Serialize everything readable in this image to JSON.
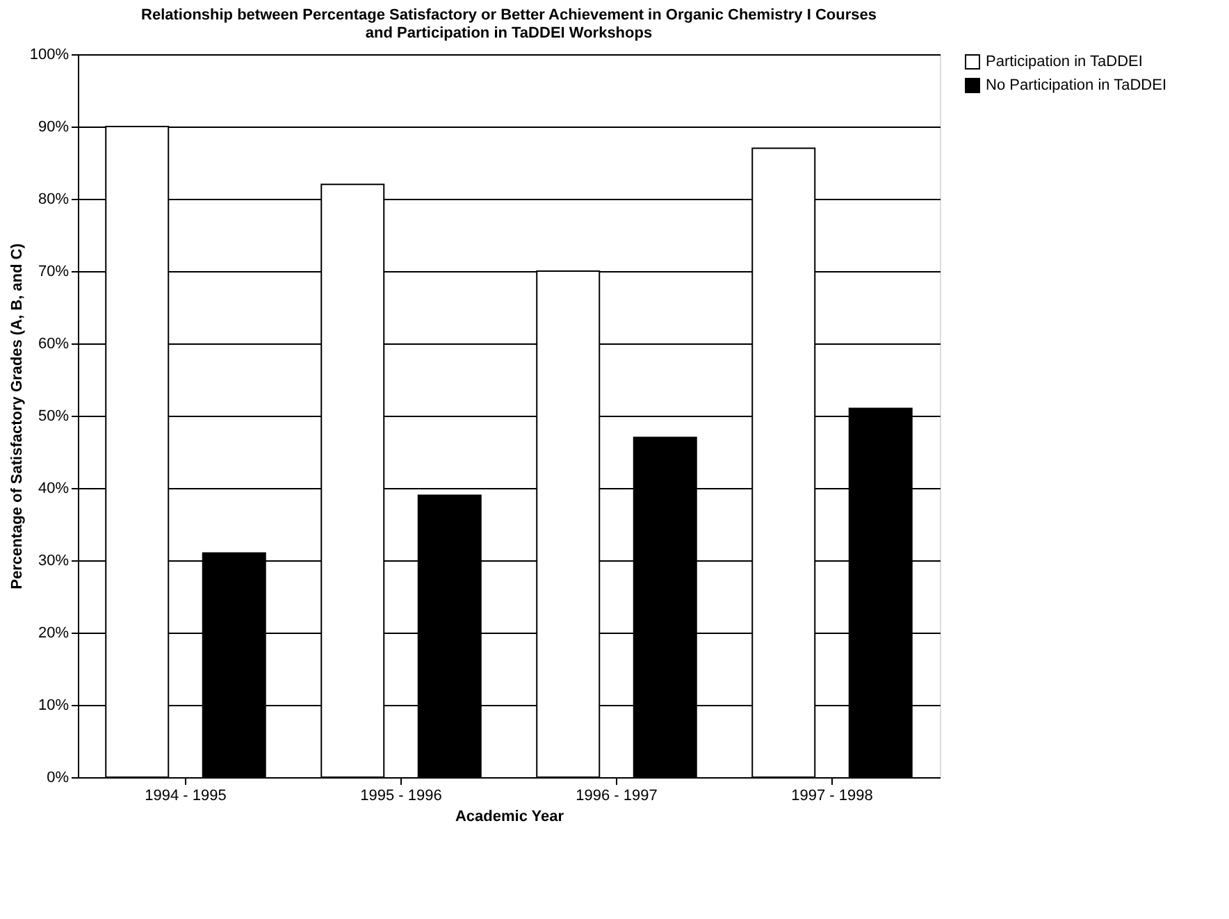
{
  "chart_data": {
    "type": "bar",
    "title": [
      "Relationship between Percentage Satisfactory or Better Achievement in Organic Chemistry I Courses",
      "and Participation in TaDDEI Workshops"
    ],
    "xlabel": "Academic Year",
    "ylabel": "Percentage of Satisfactory Grades (A, B, and C)",
    "categories": [
      "1994 - 1995",
      "1995 - 1996",
      "1996 - 1997",
      "1997 - 1998"
    ],
    "series": [
      {
        "name": "Participation in TaDDEI",
        "color": "#ffffff",
        "values": [
          90,
          82,
          70,
          87
        ]
      },
      {
        "name": "No Participation in TaDDEI",
        "color": "#000000",
        "values": [
          31,
          39,
          47,
          51
        ]
      }
    ],
    "ylim": [
      0,
      100
    ],
    "yticks": [
      {
        "value": 0,
        "label": "0%"
      },
      {
        "value": 10,
        "label": "10%"
      },
      {
        "value": 20,
        "label": "20%"
      },
      {
        "value": 30,
        "label": "30%"
      },
      {
        "value": 40,
        "label": "40%"
      },
      {
        "value": 50,
        "label": "50%"
      },
      {
        "value": 60,
        "label": "60%"
      },
      {
        "value": 70,
        "label": "70%"
      },
      {
        "value": 80,
        "label": "80%"
      },
      {
        "value": 90,
        "label": "90%"
      },
      {
        "value": 100,
        "label": "100%"
      }
    ],
    "grid": "y",
    "legend": "right"
  }
}
